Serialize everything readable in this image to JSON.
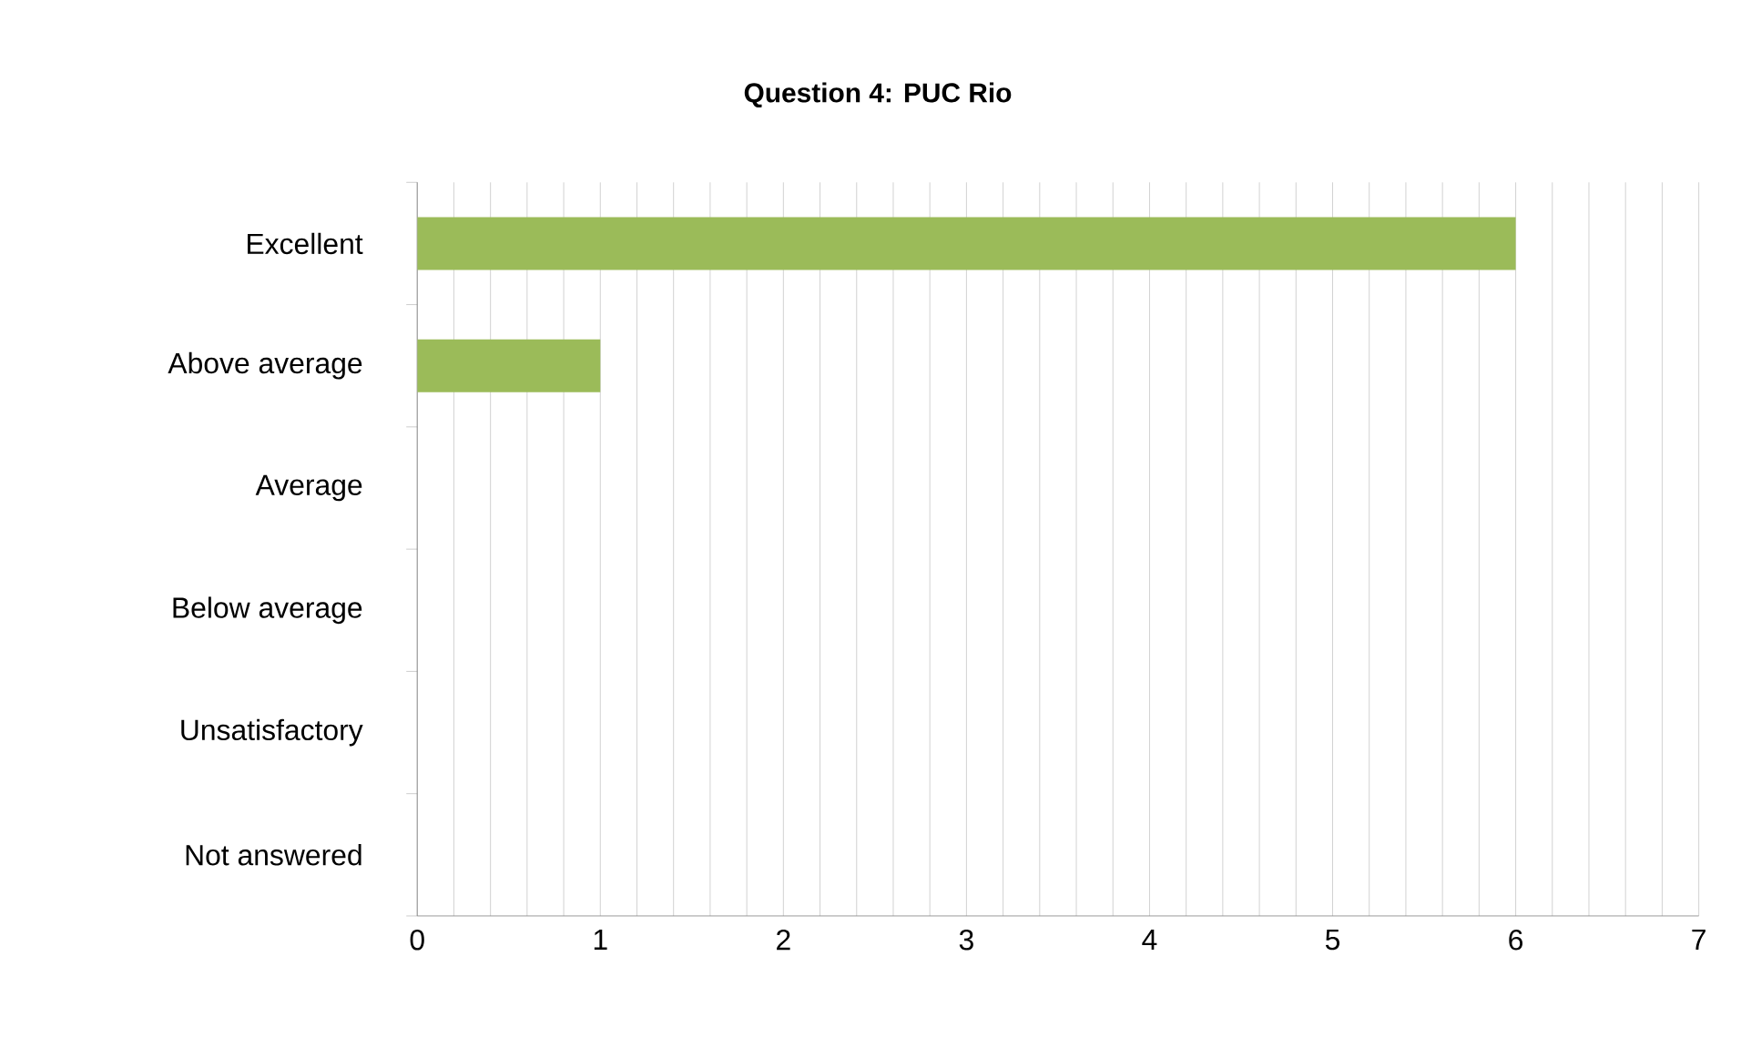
{
  "chart_data": {
    "type": "bar",
    "orientation": "horizontal",
    "title": "Question 4: PUC Rio",
    "categories": [
      "Excellent",
      "Above average",
      "Average",
      "Below average",
      "Unsatisfactory",
      "Not answered"
    ],
    "values": [
      6,
      1,
      0,
      0,
      0,
      0
    ],
    "color": "#9bbb59",
    "xlim": [
      0,
      7
    ],
    "xticks": [
      0,
      {
        "value": 0.2,
        "label": null
      },
      {
        "value": 0.4,
        "label": null
      },
      {
        "value": 0.6,
        "label": null
      },
      {
        "value": 0.8,
        "label": null
      },
      1,
      {
        "value": 1.2,
        "label": null
      },
      {
        "value": 1.4,
        "label": null
      },
      {
        "value": 1.6,
        "label": null
      },
      {
        "value": 1.8,
        "label": null
      },
      2,
      {
        "value": 2.2,
        "label": null
      },
      {
        "value": 2.4,
        "label": null
      },
      {
        "value": 2.6,
        "label": null
      },
      {
        "value": 2.8,
        "label": null
      },
      3,
      {
        "value": 3.2,
        "label": null
      },
      {
        "value": 3.4,
        "label": null
      },
      {
        "value": 3.6,
        "label": null
      },
      {
        "value": 3.8,
        "label": null
      },
      4,
      {
        "value": 4.2,
        "label": null
      },
      {
        "value": 4.4,
        "label": null
      },
      {
        "value": 4.6,
        "label": null
      },
      {
        "value": 4.8,
        "label": null
      },
      5,
      {
        "value": 5.2,
        "label": null
      },
      {
        "value": 5.4,
        "label": null
      },
      {
        "value": 5.6,
        "label": null
      },
      {
        "value": 5.8,
        "label": null
      },
      6,
      {
        "value": 6.2,
        "label": null
      },
      {
        "value": 6.4,
        "label": null
      },
      {
        "value": 6.6,
        "label": null
      },
      {
        "value": 6.8,
        "label": null
      },
      7
    ],
    "grid": "x"
  }
}
